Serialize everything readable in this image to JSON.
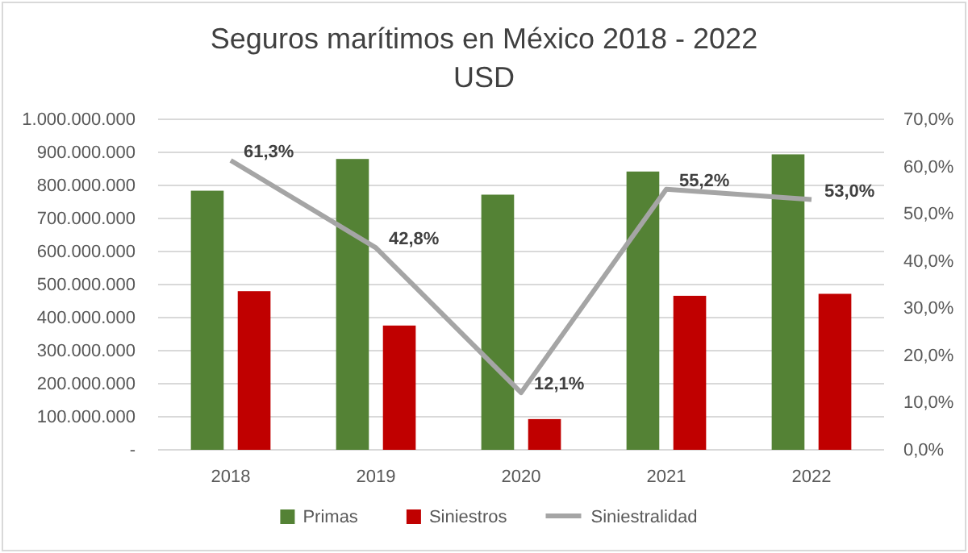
{
  "chart_data": {
    "type": "bar",
    "title": "Seguros marítimos en México 2018 - 2022",
    "subtitle": "USD",
    "categories": [
      "2018",
      "2019",
      "2020",
      "2021",
      "2022"
    ],
    "series": [
      {
        "name": "Primas",
        "color": "#548235",
        "values": [
          784000000,
          880000000,
          772000000,
          842000000,
          894000000
        ]
      },
      {
        "name": "Siniestros",
        "color": "#c00000",
        "values": [
          480000000,
          376000000,
          93000000,
          466000000,
          472000000
        ]
      },
      {
        "name": "Siniestralidad",
        "type": "line",
        "axis": "y2",
        "color": "#a5a5a5",
        "values": [
          61.3,
          42.8,
          12.1,
          55.2,
          53.0
        ],
        "value_labels": [
          "61,3%",
          "42,8%",
          "12,1%",
          "55,2%",
          "53,0%"
        ]
      }
    ],
    "ylim": [
      0,
      1000000000
    ],
    "yticks": [
      {
        "value": 0,
        "label": "-"
      },
      {
        "value": 100000000,
        "label": "100.000.000"
      },
      {
        "value": 200000000,
        "label": "200.000.000"
      },
      {
        "value": 300000000,
        "label": "300.000.000"
      },
      {
        "value": 400000000,
        "label": "400.000.000"
      },
      {
        "value": 500000000,
        "label": "500.000.000"
      },
      {
        "value": 600000000,
        "label": "600.000.000"
      },
      {
        "value": 700000000,
        "label": "700.000.000"
      },
      {
        "value": 800000000,
        "label": "800.000.000"
      },
      {
        "value": 900000000,
        "label": "900.000.000"
      },
      {
        "value": 1000000000,
        "label": "1.000.000.000"
      }
    ],
    "y2lim": [
      0,
      70
    ],
    "y2ticks": [
      {
        "value": 0,
        "label": "0,0%"
      },
      {
        "value": 10,
        "label": "10,0%"
      },
      {
        "value": 20,
        "label": "20,0%"
      },
      {
        "value": 30,
        "label": "30,0%"
      },
      {
        "value": 40,
        "label": "40,0%"
      },
      {
        "value": 50,
        "label": "50,0%"
      },
      {
        "value": 60,
        "label": "60,0%"
      },
      {
        "value": 70,
        "label": "70,0%"
      }
    ],
    "grid": "y",
    "legend": "bottom",
    "marker": "none"
  }
}
